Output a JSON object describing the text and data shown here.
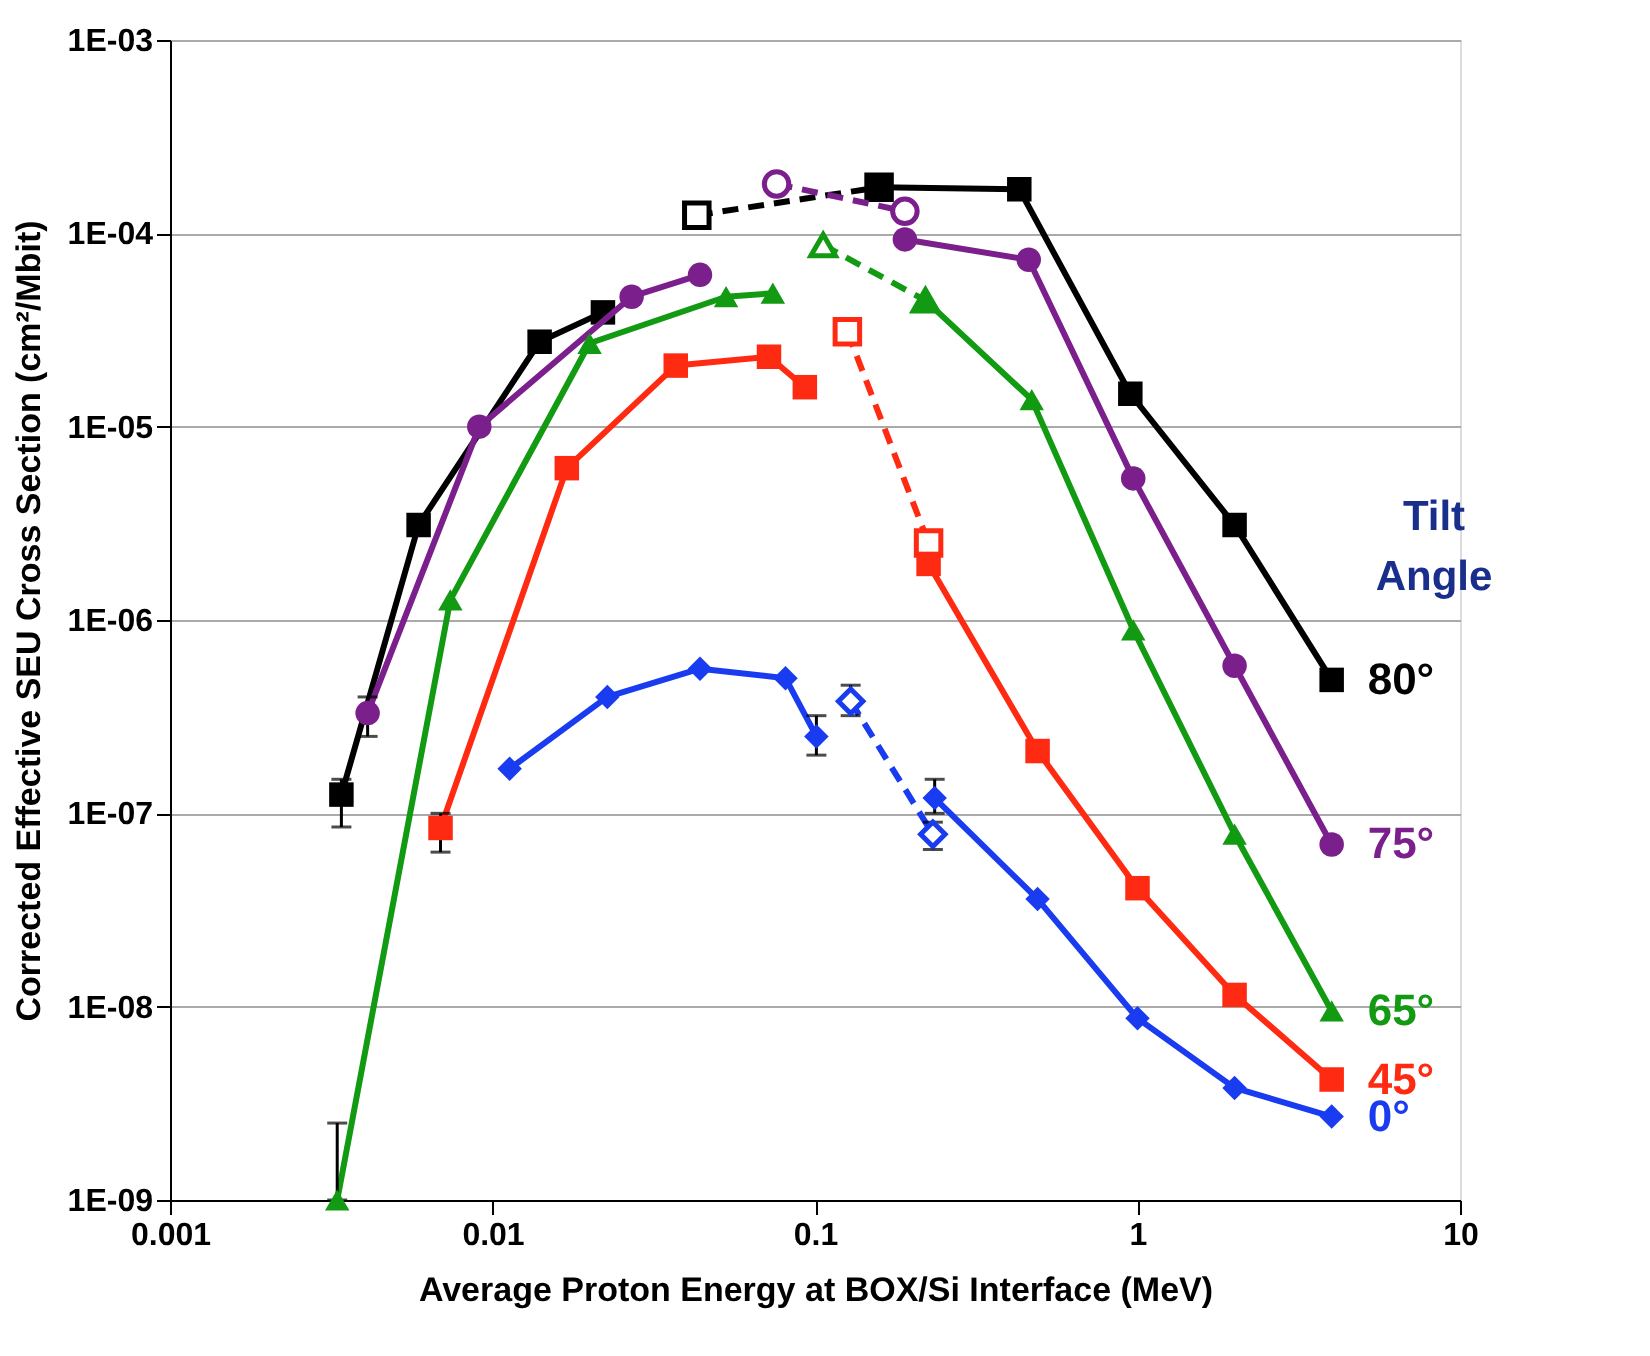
{
  "chart_data": {
    "type": "line",
    "xlabel": "Average Proton Energy at BOX/Si Interface (MeV)",
    "ylabel": "Corrected Effective SEU Cross Section (cm²/Mbit)",
    "legend_title": "Tilt Angle",
    "log": "xy",
    "grid": "y",
    "xlim": [
      0.001,
      10
    ],
    "xticks": [
      0.001,
      0.01,
      0.1,
      1,
      10
    ],
    "ylim": [
      1e-09,
      0.001
    ],
    "yticks": [
      {
        "value": 1e-09,
        "label": "1E-09"
      },
      {
        "value": 1e-08,
        "label": "1E-08"
      },
      {
        "value": 1e-07,
        "label": "1E-07"
      },
      {
        "value": 1e-06,
        "label": "1E-06"
      },
      {
        "value": 1e-05,
        "label": "1E-05"
      },
      {
        "value": 0.0001,
        "label": "1E-04"
      },
      {
        "value": 0.001,
        "label": "1E-03"
      }
    ],
    "series": [
      {
        "color": "#000000",
        "marker": "square",
        "line_style": "solid",
        "x": [
          0.0034,
          0.0059,
          0.014,
          0.022
        ],
        "values": [
          1.25e-07,
          3.1e-06,
          2.75e-05,
          3.9e-05
        ],
        "errors": [
          [
            8.5e-08,
            1.5e-07
          ],
          null,
          null,
          null
        ]
      },
      {
        "color": "#000000",
        "marker": "square",
        "line_style": "dashed",
        "x": [
          0.043,
          0.158
        ],
        "values": [
          0.000124,
          0.000173
        ]
      },
      {
        "name": "80°",
        "color": "#000000",
        "marker": "square",
        "line_style": "solid",
        "x": [
          0.158,
          0.43,
          0.95,
          2,
          4
        ],
        "values": [
          0.000173,
          0.000169,
          1.48e-05,
          3.1e-06,
          4.9e-07
        ]
      },
      {
        "color": "#7b1f8c",
        "marker": "circle",
        "line_style": "solid",
        "x": [
          0.0041,
          0.0091,
          0.027,
          0.044
        ],
        "values": [
          3.3e-07,
          1e-05,
          4.7e-05,
          6.1e-05
        ],
        "errors": [
          [
            2.5e-07,
            4e-07
          ],
          null,
          null,
          null
        ]
      },
      {
        "color": "#7b1f8c",
        "marker": "circle",
        "line_style": "dashed",
        "x": [
          0.076,
          0.19
        ],
        "values": [
          0.00018,
          0.00013
        ]
      },
      {
        "name": "75°",
        "color": "#7b1f8c",
        "marker": "circle",
        "line_style": "solid",
        "x": [
          0.19,
          0.46,
          0.97,
          2,
          4
        ],
        "values": [
          9.3e-05,
          7.3e-05,
          5.4e-06,
          5.8e-07,
          6.9e-08
        ]
      },
      {
        "color": "#129a12",
        "marker": "triangle",
        "line_style": "solid",
        "x": [
          0.0033,
          0.0074,
          0.02,
          0.053,
          0.074
        ],
        "values": [
          1e-09,
          1.27e-06,
          2.7e-05,
          4.7e-05,
          4.9e-05
        ],
        "errors": [
          [
            1e-09,
            2.5e-09
          ],
          null,
          null,
          null,
          null
        ]
      },
      {
        "color": "#129a12",
        "marker": "triangle",
        "line_style": "dashed",
        "x": [
          0.106,
          0.22
        ],
        "values": [
          8.7e-05,
          4.5e-05
        ]
      },
      {
        "name": "65°",
        "color": "#129a12",
        "marker": "triangle",
        "line_style": "solid",
        "x": [
          0.22,
          0.47,
          0.97,
          2,
          4
        ],
        "values": [
          4.5e-05,
          1.38e-05,
          8.9e-07,
          7.8e-08,
          9.5e-09
        ]
      },
      {
        "color": "#ff2a12",
        "marker": "square",
        "line_style": "solid",
        "x": [
          0.0069,
          0.017,
          0.037,
          0.072,
          0.093
        ],
        "values": [
          8.4e-08,
          6.1e-06,
          2.07e-05,
          2.3e-05,
          1.6e-05
        ],
        "errors": [
          [
            6.3e-08,
            1e-07
          ],
          null,
          null,
          null,
          null
        ]
      },
      {
        "color": "#ff2a12",
        "marker": "square",
        "line_style": "dashed",
        "x": [
          0.126,
          0.225
        ],
        "values": [
          3.1e-05,
          2.5e-06
        ]
      },
      {
        "name": "45°",
        "color": "#ff2a12",
        "marker": "square",
        "line_style": "solid",
        "x": [
          0.225,
          0.49,
          1,
          2,
          4
        ],
        "values": [
          1.95e-06,
          2.1e-07,
          4.1e-08,
          1.15e-08,
          4.2e-09
        ]
      },
      {
        "color": "#1a3cf0",
        "marker": "diamond",
        "line_style": "solid",
        "x": [
          0.0113,
          0.0227,
          0.044,
          0.081,
          0.101
        ],
        "values": [
          1.7e-07,
          4e-07,
          5.6e-07,
          5e-07,
          2.5e-07
        ],
        "errors": [
          null,
          null,
          null,
          null,
          [
            2e-07,
            3.2e-07
          ]
        ]
      },
      {
        "color": "#1a3cf0",
        "marker": "diamond",
        "line_style": "dashed",
        "x": [
          0.129,
          0.232
        ],
        "values": [
          3.8e-07,
          7.8e-08
        ],
        "errors": [
          [
            3.2e-07,
            4.6e-07
          ],
          [
            6.5e-08,
            9e-08
          ]
        ]
      },
      {
        "name": "0°",
        "color": "#1a3cf0",
        "marker": "diamond",
        "line_style": "solid",
        "x": [
          0.235,
          0.49,
          1,
          2,
          4
        ],
        "values": [
          1.2e-07,
          3.6e-08,
          8.7e-09,
          3.8e-09,
          2.7e-09
        ],
        "errors": [
          [
            1e-07,
            1.5e-07
          ],
          null,
          null,
          null,
          null
        ]
      }
    ]
  }
}
